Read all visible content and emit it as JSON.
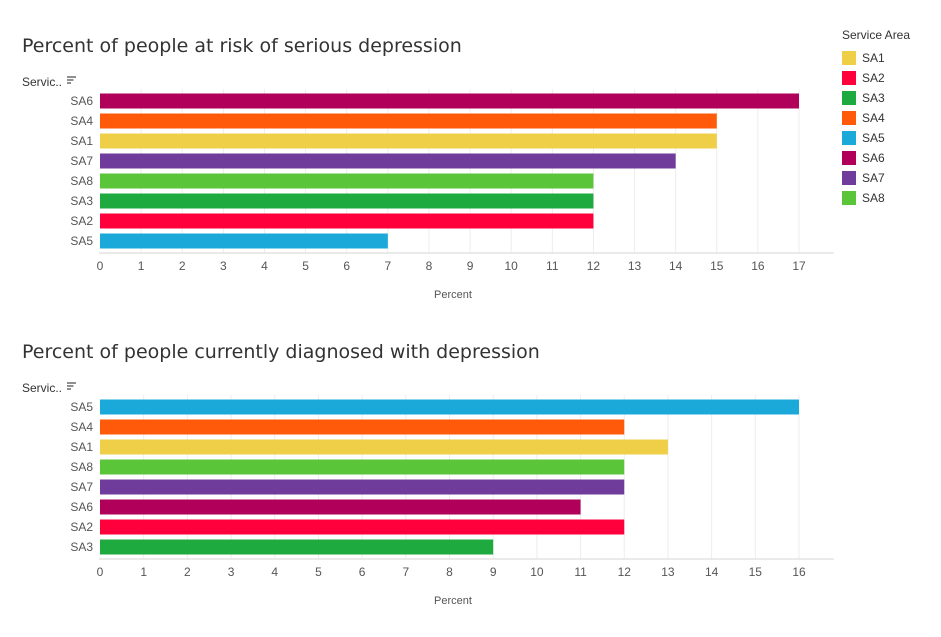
{
  "legend": {
    "title": "Service Area",
    "items": [
      {
        "label": "SA1",
        "color": "#EFCF48"
      },
      {
        "label": "SA2",
        "color": "#FF003C"
      },
      {
        "label": "SA3",
        "color": "#1FAA3F"
      },
      {
        "label": "SA4",
        "color": "#FF5A0A"
      },
      {
        "label": "SA5",
        "color": "#1AA9D8"
      },
      {
        "label": "SA6",
        "color": "#B0005A"
      },
      {
        "label": "SA7",
        "color": "#6F3C9C"
      },
      {
        "label": "SA8",
        "color": "#5BC53A"
      }
    ]
  },
  "chart_data": [
    {
      "type": "bar",
      "orientation": "horizontal",
      "title": "Percent of people at risk of serious depression",
      "row_header": "Servic..",
      "xlabel": "Percent",
      "xlim": [
        0,
        17
      ],
      "xticks": [
        0,
        1,
        2,
        3,
        4,
        5,
        6,
        7,
        8,
        9,
        10,
        11,
        12,
        13,
        14,
        15,
        16,
        17
      ],
      "grid": true,
      "categories": [
        "SA6",
        "SA4",
        "SA1",
        "SA7",
        "SA8",
        "SA3",
        "SA2",
        "SA5"
      ],
      "values": [
        17,
        15,
        15,
        14,
        12,
        12,
        12,
        7
      ]
    },
    {
      "type": "bar",
      "orientation": "horizontal",
      "title": "Percent of people currently diagnosed with depression",
      "row_header": "Servic..",
      "xlabel": "Percent",
      "xlim": [
        0,
        16
      ],
      "xticks": [
        0,
        1,
        2,
        3,
        4,
        5,
        6,
        7,
        8,
        9,
        10,
        11,
        12,
        13,
        14,
        15,
        16
      ],
      "grid": true,
      "categories": [
        "SA5",
        "SA4",
        "SA1",
        "SA8",
        "SA7",
        "SA6",
        "SA2",
        "SA3"
      ],
      "values": [
        16,
        12,
        13,
        12,
        12,
        11,
        12,
        9
      ]
    }
  ]
}
